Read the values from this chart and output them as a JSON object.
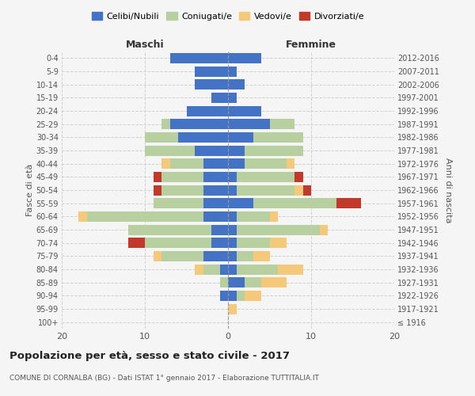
{
  "age_groups": [
    "100+",
    "95-99",
    "90-94",
    "85-89",
    "80-84",
    "75-79",
    "70-74",
    "65-69",
    "60-64",
    "55-59",
    "50-54",
    "45-49",
    "40-44",
    "35-39",
    "30-34",
    "25-29",
    "20-24",
    "15-19",
    "10-14",
    "5-9",
    "0-4"
  ],
  "birth_years": [
    "≤ 1916",
    "1917-1921",
    "1922-1926",
    "1927-1931",
    "1932-1936",
    "1937-1941",
    "1942-1946",
    "1947-1951",
    "1952-1956",
    "1957-1961",
    "1962-1966",
    "1967-1971",
    "1972-1976",
    "1977-1981",
    "1982-1986",
    "1987-1991",
    "1992-1996",
    "1997-2001",
    "2002-2006",
    "2007-2011",
    "2012-2016"
  ],
  "male": {
    "celibi": [
      0,
      0,
      1,
      0,
      1,
      3,
      2,
      2,
      3,
      3,
      3,
      3,
      3,
      4,
      6,
      7,
      5,
      2,
      4,
      4,
      7
    ],
    "coniugati": [
      0,
      0,
      0,
      1,
      2,
      5,
      8,
      10,
      14,
      6,
      5,
      5,
      4,
      6,
      4,
      1,
      0,
      0,
      0,
      0,
      0
    ],
    "vedovi": [
      0,
      0,
      0,
      0,
      1,
      1,
      0,
      0,
      1,
      0,
      0,
      0,
      1,
      0,
      0,
      0,
      0,
      0,
      0,
      0,
      0
    ],
    "divorziati": [
      0,
      0,
      0,
      0,
      0,
      0,
      2,
      0,
      0,
      0,
      1,
      1,
      0,
      0,
      0,
      0,
      0,
      0,
      0,
      0,
      0
    ]
  },
  "female": {
    "nubili": [
      0,
      0,
      1,
      2,
      1,
      1,
      1,
      1,
      1,
      3,
      1,
      1,
      2,
      2,
      3,
      5,
      4,
      1,
      2,
      1,
      4
    ],
    "coniugate": [
      0,
      0,
      1,
      2,
      5,
      2,
      4,
      10,
      4,
      10,
      7,
      7,
      5,
      7,
      6,
      3,
      0,
      0,
      0,
      0,
      0
    ],
    "vedove": [
      0,
      1,
      2,
      3,
      3,
      2,
      2,
      1,
      1,
      0,
      1,
      0,
      1,
      0,
      0,
      0,
      0,
      0,
      0,
      0,
      0
    ],
    "divorziate": [
      0,
      0,
      0,
      0,
      0,
      0,
      0,
      0,
      0,
      3,
      1,
      1,
      0,
      0,
      0,
      0,
      0,
      0,
      0,
      0,
      0
    ]
  },
  "colors": {
    "celibi": "#4472c4",
    "coniugati": "#b8cfa0",
    "vedovi": "#f5c97a",
    "divorziati": "#c0392b"
  },
  "title": "Popolazione per età, sesso e stato civile - 2017",
  "subtitle": "COMUNE DI CORNALBA (BG) - Dati ISTAT 1° gennaio 2017 - Elaborazione TUTTITALIA.IT",
  "xlabel_left": "Maschi",
  "xlabel_right": "Femmine",
  "ylabel_left": "Fasce di età",
  "ylabel_right": "Anni di nascita",
  "xlim": 20,
  "bg_color": "#f5f5f5",
  "grid_color": "#cccccc"
}
